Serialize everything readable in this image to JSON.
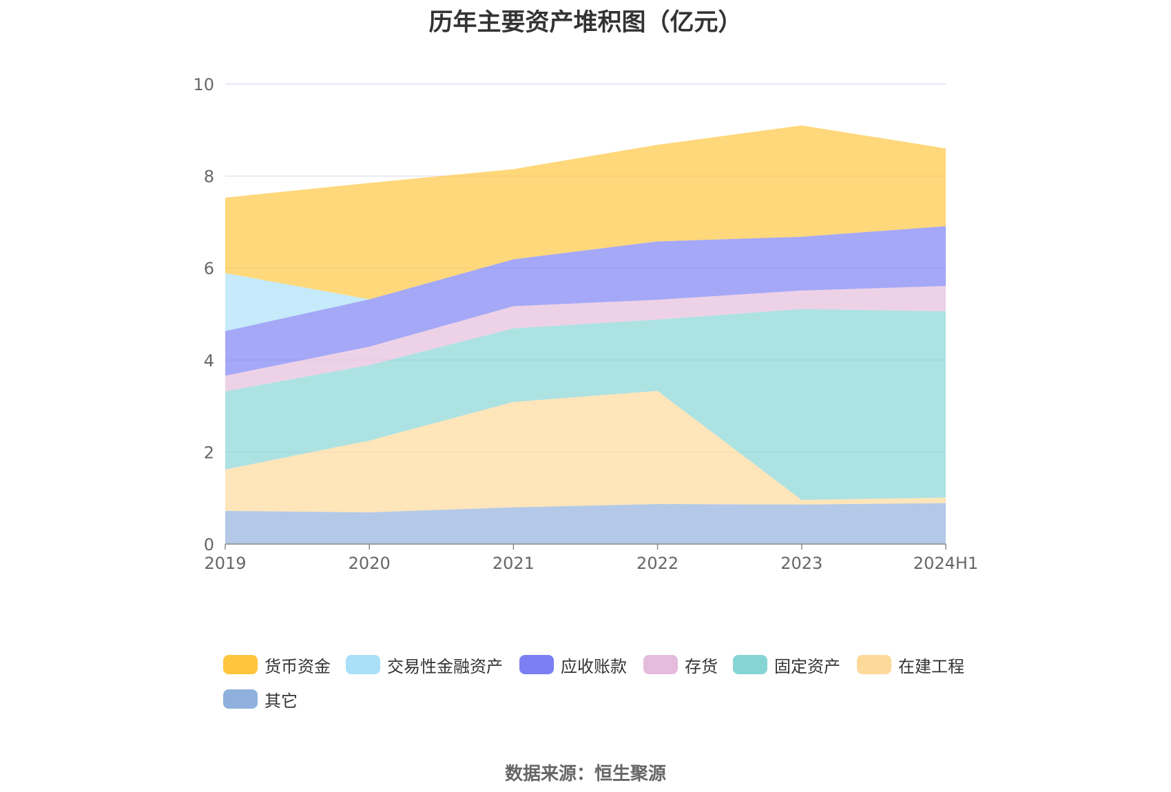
{
  "chart_data": {
    "type": "area",
    "stacked": true,
    "title": "历年主要资产堆积图（亿元）",
    "categories": [
      "2019",
      "2020",
      "2021",
      "2022",
      "2023",
      "2024H1"
    ],
    "ylim": [
      0,
      10
    ],
    "yticks": [
      "0",
      "2",
      "4",
      "6",
      "8",
      "10"
    ],
    "grid": true,
    "legend_position": "bottom",
    "series": [
      {
        "name": "其它",
        "color": "#8fb0dc",
        "values": [
          0.72,
          0.69,
          0.8,
          0.87,
          0.86,
          0.89
        ]
      },
      {
        "name": "在建工程",
        "color": "#fdd99a",
        "values": [
          0.9,
          1.56,
          2.29,
          2.46,
          0.1,
          0.12
        ]
      },
      {
        "name": "固定资产",
        "color": "#86d4d4",
        "values": [
          1.7,
          1.64,
          1.6,
          1.55,
          4.15,
          4.05
        ]
      },
      {
        "name": "存货",
        "color": "#e5bcdb",
        "values": [
          0.34,
          0.4,
          0.48,
          0.43,
          0.4,
          0.55
        ]
      },
      {
        "name": "应收账款",
        "color": "#7b7ff2",
        "values": [
          0.97,
          1.03,
          1.02,
          1.27,
          1.17,
          1.3
        ]
      },
      {
        "name": "交易性金融资产",
        "color": "#a9e0f8",
        "values": [
          1.26,
          0.0,
          0.0,
          0.0,
          0.0,
          0.0
        ]
      },
      {
        "name": "货币资金",
        "color": "#ffc53d",
        "values": [
          1.64,
          2.53,
          1.96,
          2.1,
          2.42,
          1.69
        ]
      }
    ]
  },
  "legend": [
    {
      "name": "货币资金",
      "color": "#ffc53d"
    },
    {
      "name": "交易性金融资产",
      "color": "#a9e0f8"
    },
    {
      "name": "应收账款",
      "color": "#7b7ff2"
    },
    {
      "name": "存货",
      "color": "#e5bcdb"
    },
    {
      "name": "固定资产",
      "color": "#86d4d4"
    },
    {
      "name": "在建工程",
      "color": "#fdd99a"
    },
    {
      "name": "其它",
      "color": "#8fb0dc"
    }
  ],
  "source": "数据来源：恒生聚源"
}
